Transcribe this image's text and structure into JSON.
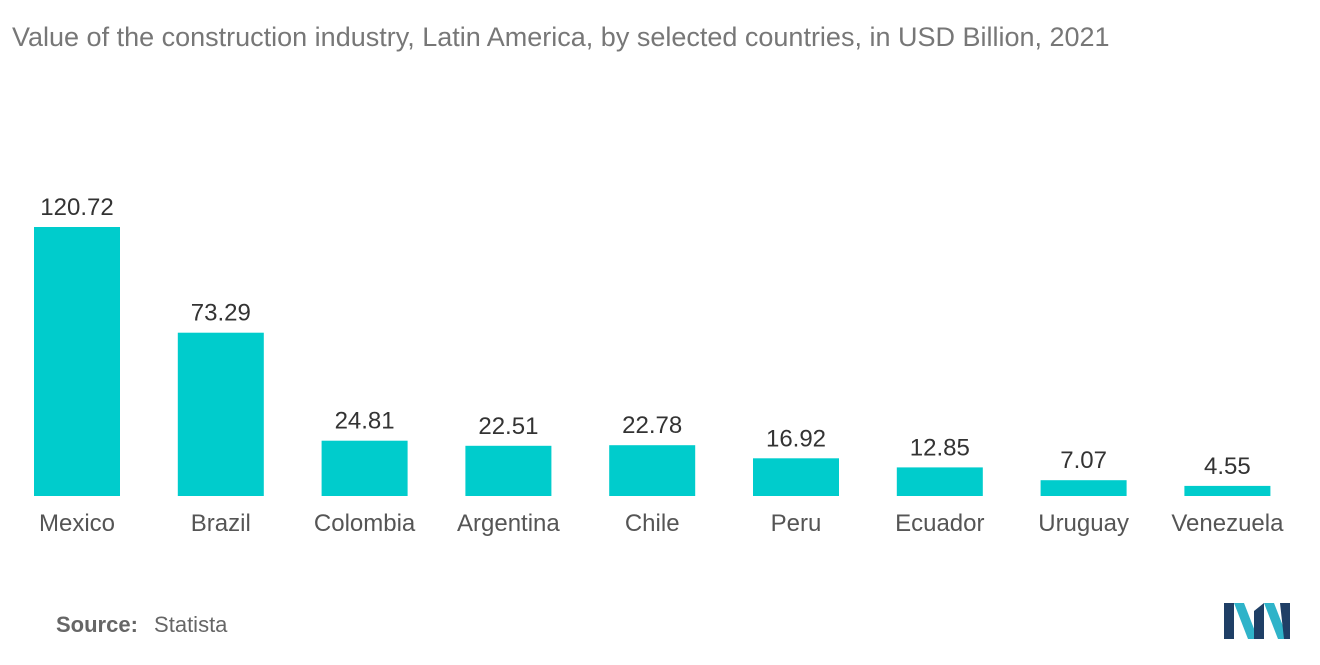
{
  "title": "Value of the construction industry, Latin America, by selected countries, in USD Billion, 2021",
  "source": {
    "label": "Source:",
    "value": "Statista"
  },
  "logo": {
    "icon": "mordor-intelligence-logo-icon",
    "colors": [
      "#1f3f66",
      "#2fb3c9"
    ]
  },
  "colors": {
    "bar": "#00cccc",
    "value_label": "#333333",
    "category_label": "#555555",
    "title": "#777777"
  },
  "chart_data": {
    "type": "bar",
    "title": "Value of the construction industry, Latin America, by selected countries, in USD Billion, 2021",
    "categories": [
      "Mexico",
      "Brazil",
      "Colombia",
      "Argentina",
      "Chile",
      "Peru",
      "Ecuador",
      "Uruguay",
      "Venezuela"
    ],
    "values": [
      120.72,
      73.29,
      24.81,
      22.51,
      22.78,
      16.92,
      12.85,
      7.07,
      4.55
    ],
    "value_labels": [
      "120.72",
      "73.29",
      "24.81",
      "22.51",
      "22.78",
      "16.92",
      "12.85",
      "7.07",
      "4.55"
    ],
    "xlabel": "",
    "ylabel": "",
    "ylim": [
      0,
      120.72
    ],
    "grid": false,
    "legend": "none"
  }
}
